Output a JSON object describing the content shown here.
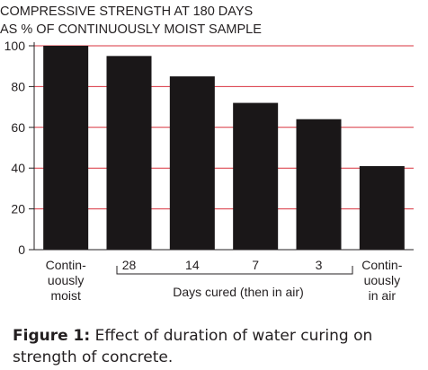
{
  "chart_data": {
    "type": "bar",
    "title_lines": [
      "COMPRESSIVE STRENGTH AT 180 DAYS",
      "AS % OF CONTINUOUSLY MOIST SAMPLE"
    ],
    "categories": [
      "Continuously moist",
      "28",
      "14",
      "7",
      "3",
      "Continuously in air"
    ],
    "category_label_lines": [
      [
        "Contin-",
        "uously",
        "moist"
      ],
      [
        "28"
      ],
      [
        "14"
      ],
      [
        "7"
      ],
      [
        "3"
      ],
      [
        "Contin-",
        "uously",
        "in air"
      ]
    ],
    "values": [
      100,
      95,
      85,
      72,
      64,
      41
    ],
    "group_label": "Days cured (then in air)",
    "yticks": [
      0,
      20,
      40,
      60,
      80,
      100
    ],
    "ylim": [
      0,
      100
    ],
    "grid": true,
    "colors": {
      "bar": "#1a1718",
      "grid": "#d8333f",
      "axis": "#231f20",
      "text": "#231f20"
    }
  },
  "caption": {
    "label": "Figure 1:",
    "text": "Effect of duration of water curing on strength of concrete."
  }
}
